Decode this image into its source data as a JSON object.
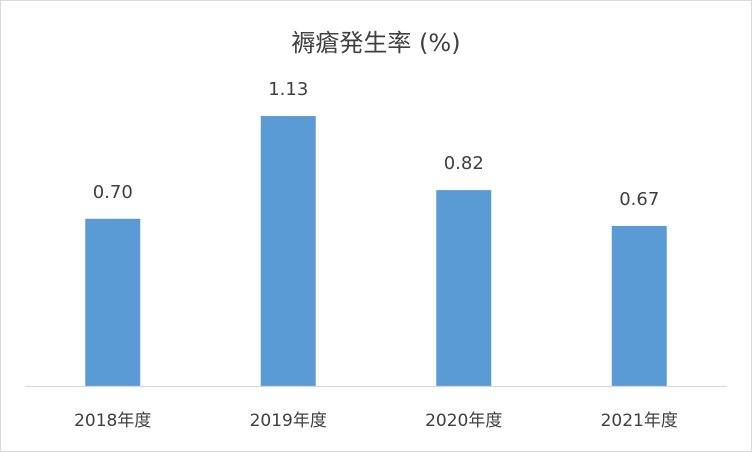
{
  "chart_data": {
    "type": "bar",
    "title": "褥瘡発生率 (%)",
    "xlabel": "",
    "ylabel": "",
    "categories": [
      "2018年度",
      "2019年度",
      "2020年度",
      "2021年度"
    ],
    "values": [
      0.7,
      1.13,
      0.82,
      0.67
    ],
    "data_labels": [
      "0.70",
      "1.13",
      "0.82",
      "0.67"
    ],
    "ylim": [
      0,
      1.2
    ],
    "grid": false,
    "legend": "none",
    "bar_color": "#5b9bd5"
  }
}
